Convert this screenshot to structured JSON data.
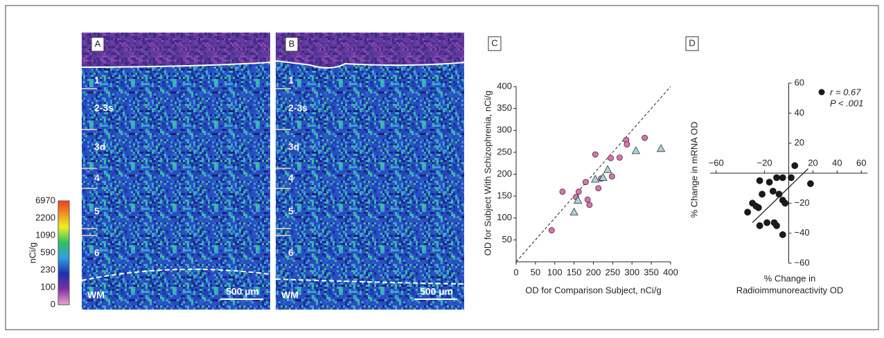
{
  "panels": [
    {
      "label": "A",
      "layers": [
        "1",
        "2-3s",
        "3d",
        "4",
        "5",
        "6",
        "WM"
      ],
      "scale_bar": "500 µm"
    },
    {
      "label": "B",
      "layers": [
        "1",
        "2-3s",
        "3d",
        "4",
        "5",
        "6",
        "WM"
      ],
      "scale_bar": "500 µm"
    }
  ],
  "colorbar": {
    "label": "nCi/g",
    "ticks": [
      "6970",
      "2200",
      "1090",
      "590",
      "230",
      "100",
      "0"
    ]
  },
  "chart_data": [
    {
      "type": "scatter",
      "panel": "C",
      "xlabel": "OD for Comparison Subject, nCi/g",
      "ylabel": "OD for Subject With Schizophrenia, nCi/g",
      "xlim": [
        0,
        400
      ],
      "ylim": [
        0,
        400
      ],
      "xticks": [
        0,
        50,
        100,
        150,
        200,
        250,
        300,
        350,
        400
      ],
      "yticks": [
        50,
        100,
        150,
        200,
        250,
        300,
        350,
        400
      ],
      "identity_line": true,
      "series": [
        {
          "marker": "circle",
          "color": "#e070b0",
          "x": [
            92,
            120,
            155,
            162,
            180,
            185,
            190,
            205,
            213,
            220,
            245,
            248,
            268,
            285,
            287,
            333
          ],
          "values": [
            72,
            160,
            148,
            160,
            182,
            142,
            130,
            245,
            168,
            190,
            237,
            195,
            238,
            278,
            268,
            283
          ]
        },
        {
          "marker": "triangle",
          "color": "#a8d4dc",
          "x": [
            150,
            160,
            205,
            225,
            237,
            310,
            375
          ],
          "values": [
            113,
            140,
            188,
            192,
            210,
            253,
            258
          ]
        }
      ]
    },
    {
      "type": "scatter",
      "panel": "D",
      "xlabel": [
        "% Change in",
        "Radioimmunoreactivity OD"
      ],
      "ylabel": "% Change in mRNA OD",
      "xlim": [
        -65,
        65
      ],
      "ylim": [
        -60,
        60
      ],
      "xticks": [
        {
          "value": -60,
          "label": "−60"
        },
        {
          "value": -20,
          "label": "−20"
        },
        20,
        40,
        60
      ],
      "yticks": [
        60,
        40,
        20,
        {
          "value": -20,
          "label": "−20"
        },
        {
          "value": -40,
          "label": "−40"
        },
        {
          "value": -60,
          "label": "−60"
        }
      ],
      "annotation": [
        "r = 0.67",
        "P < .001"
      ],
      "fit_line": {
        "x": [
          -30,
          16
        ],
        "y": [
          -33,
          3
        ]
      },
      "series": [
        {
          "marker": "circle",
          "color": "#1a1a1a",
          "x": [
            -24,
            -10,
            -5,
            2,
            5,
            18,
            -30,
            -34,
            -25,
            -22,
            -13,
            -8,
            -5,
            -3,
            -24,
            -18,
            -12,
            -10,
            -5,
            -27,
            -16
          ],
          "values": [
            -5,
            -3,
            -3,
            -3,
            5,
            -7,
            -20,
            -26,
            -23,
            -14,
            -12,
            -14,
            -18,
            -20,
            -35,
            -33,
            -33,
            -35,
            -41,
            -22,
            -6
          ]
        }
      ]
    }
  ]
}
